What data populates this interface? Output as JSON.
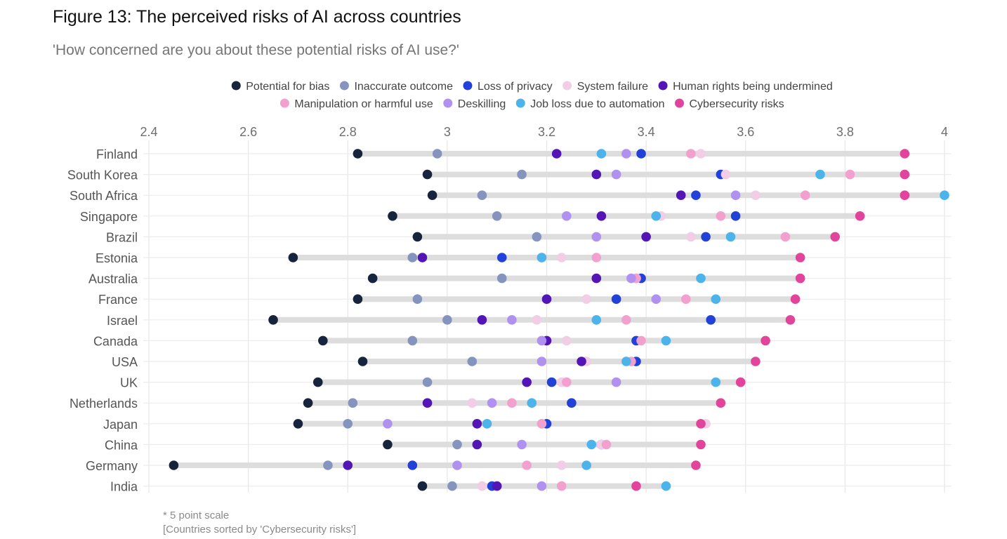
{
  "header": {
    "title": "Figure 13: The perceived risks of AI across countries",
    "subtitle": "'How concerned are you about these potential risks of AI use?'"
  },
  "footnotes": {
    "scale": "* 5 point scale",
    "sort": "[Countries sorted by 'Cybersecurity risks']"
  },
  "chart_data": {
    "type": "scatter",
    "subtype": "dot-range",
    "axis": {
      "xlim": [
        2.4,
        4.0
      ],
      "ticks": [
        2.4,
        2.6,
        2.8,
        3.0,
        3.2,
        3.4,
        3.6,
        3.8,
        4.0
      ],
      "tick_labels": [
        "2.4",
        "2.6",
        "2.8",
        "3",
        "3.2",
        "3.4",
        "3.6",
        "3.8",
        "4"
      ],
      "position": "top",
      "grid": true
    },
    "legend_position": "top-center",
    "categories": [
      "Finland",
      "South Korea",
      "South Africa",
      "Singapore",
      "Brazil",
      "Estonia",
      "Australia",
      "France",
      "Israel",
      "Canada",
      "USA",
      "UK",
      "Netherlands",
      "Japan",
      "China",
      "Germany",
      "India"
    ],
    "series": [
      {
        "name": "Potential for bias",
        "color": "#16243d",
        "values": [
          2.82,
          2.96,
          2.97,
          2.89,
          2.94,
          2.69,
          2.85,
          2.82,
          2.65,
          2.75,
          2.83,
          2.74,
          2.72,
          2.7,
          2.88,
          2.45,
          2.95
        ]
      },
      {
        "name": "Inaccurate outcome",
        "color": "#8594bf",
        "values": [
          2.98,
          3.15,
          3.07,
          3.1,
          3.18,
          2.93,
          3.11,
          2.94,
          3.0,
          2.93,
          3.05,
          2.96,
          2.81,
          2.8,
          3.02,
          2.76,
          3.01
        ]
      },
      {
        "name": "Loss of privacy",
        "color": "#2241d9",
        "values": [
          3.39,
          3.55,
          3.5,
          3.58,
          3.52,
          3.11,
          3.39,
          3.34,
          3.53,
          3.38,
          3.38,
          3.21,
          3.25,
          3.2,
          3.31,
          2.93,
          3.09
        ]
      },
      {
        "name": "System failure",
        "color": "#f2cde6",
        "values": [
          3.51,
          3.56,
          3.62,
          3.43,
          3.49,
          3.23,
          3.38,
          3.28,
          3.18,
          3.24,
          3.28,
          3.23,
          3.05,
          3.52,
          3.31,
          3.23,
          3.07
        ]
      },
      {
        "name": "Human rights being undermined",
        "color": "#5315b5",
        "values": [
          3.22,
          3.3,
          3.47,
          3.31,
          3.4,
          2.95,
          3.3,
          3.2,
          3.07,
          3.2,
          3.27,
          3.16,
          2.96,
          3.06,
          3.06,
          2.8,
          3.1
        ]
      },
      {
        "name": "Manipulation or harmful use",
        "color": "#f2a1cf",
        "values": [
          3.49,
          3.81,
          3.72,
          3.55,
          3.68,
          3.3,
          3.38,
          3.48,
          3.36,
          3.39,
          3.37,
          3.24,
          3.13,
          3.19,
          3.32,
          3.16,
          3.23
        ]
      },
      {
        "name": "Deskilling",
        "color": "#b191f0",
        "values": [
          3.36,
          3.34,
          3.58,
          3.24,
          3.3,
          3.19,
          3.37,
          3.42,
          3.13,
          3.19,
          3.19,
          3.34,
          3.09,
          2.88,
          3.15,
          3.02,
          3.19
        ]
      },
      {
        "name": "Job loss due to automation",
        "color": "#4cb4ea",
        "values": [
          3.31,
          3.75,
          4.0,
          3.42,
          3.57,
          3.19,
          3.51,
          3.54,
          3.3,
          3.44,
          3.36,
          3.54,
          3.17,
          3.08,
          3.29,
          3.28,
          3.44
        ]
      },
      {
        "name": "Cybersecurity risks",
        "color": "#e3449b",
        "values": [
          3.92,
          3.92,
          3.92,
          3.83,
          3.78,
          3.71,
          3.71,
          3.7,
          3.69,
          3.64,
          3.62,
          3.59,
          3.55,
          3.51,
          3.51,
          3.5,
          3.38
        ]
      }
    ]
  }
}
